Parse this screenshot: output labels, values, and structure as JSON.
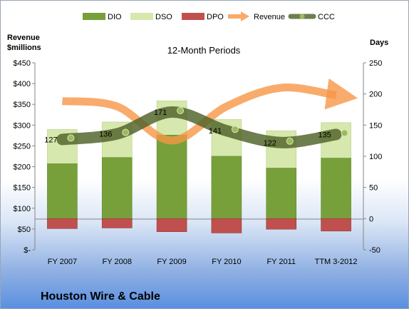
{
  "company": "Houston Wire & Cable",
  "chart_data": {
    "type": "bar",
    "subtitle": "12-Month Periods",
    "left_axis_label": [
      "Revenue",
      "$millions"
    ],
    "right_axis_label": "Days",
    "categories": [
      "FY 2007",
      "FY 2008",
      "FY 2009",
      "FY 2010",
      "FY 2011",
      "TTM 3-2012"
    ],
    "left_ticks": [
      "$450",
      "$400",
      "$350",
      "$300",
      "$250",
      "$200",
      "$150",
      "$100",
      "$50",
      "$-"
    ],
    "right_ticks": [
      "250",
      "200",
      "150",
      "100",
      "50",
      "0",
      "-50"
    ],
    "ylim_left": [
      0,
      450
    ],
    "ylim_right": [
      -50,
      250
    ],
    "grid": false,
    "legend_position": "top",
    "series": [
      {
        "name": "DIO",
        "kind": "stacked-bar",
        "axis": "right",
        "color": "#77a03a",
        "values": [
          88,
          98,
          134,
          100,
          81,
          97
        ]
      },
      {
        "name": "DSO",
        "kind": "stacked-bar",
        "axis": "right",
        "color": "#d6e8ad",
        "values": [
          55,
          57,
          55,
          59,
          60,
          57
        ]
      },
      {
        "name": "DPO",
        "kind": "negative-bar",
        "axis": "right",
        "color": "#c0504d",
        "values": [
          -16,
          -15,
          -21,
          -23,
          -17,
          -20
        ]
      },
      {
        "name": "Revenue",
        "kind": "arrow-line",
        "axis": "left",
        "color": "#f79646",
        "values": [
          358,
          345,
          263,
          345,
          390,
          372
        ]
      },
      {
        "name": "CCC",
        "kind": "line",
        "axis": "right",
        "color": "#4f6228",
        "values": [
          127,
          136,
          171,
          141,
          122,
          135
        ]
      }
    ]
  }
}
